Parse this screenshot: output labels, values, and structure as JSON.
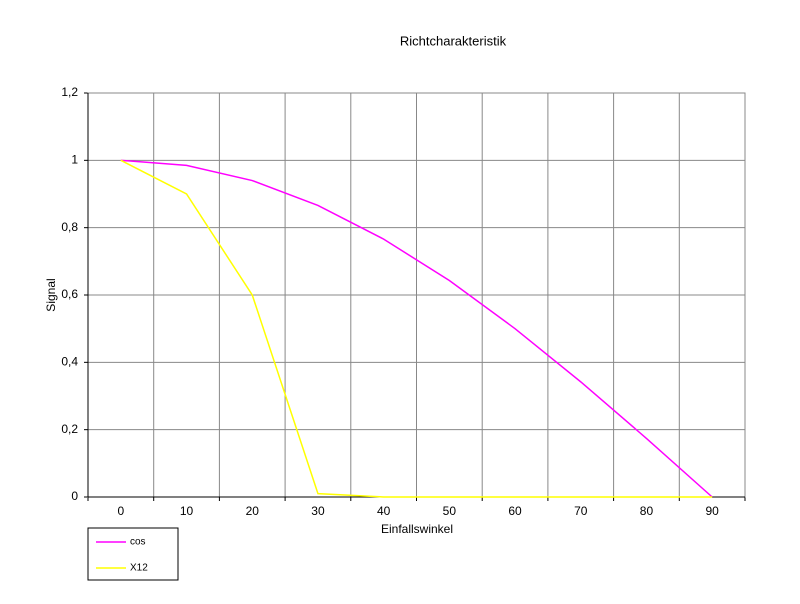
{
  "chart_data": {
    "type": "line",
    "title": "Richtcharakteristik",
    "x_label": "Einfallswinkel",
    "y_label": "Signal",
    "categories": [
      0,
      10,
      20,
      30,
      40,
      50,
      60,
      70,
      80,
      90
    ],
    "series": [
      {
        "name": "cos",
        "color": "#ff00ff",
        "values": [
          1,
          0.985,
          0.94,
          0.866,
          0.766,
          0.643,
          0.5,
          0.342,
          0.174,
          0
        ]
      },
      {
        "name": "X12",
        "color": "#ffff00",
        "values": [
          1,
          0.9,
          0.6,
          0.01,
          0,
          0,
          0,
          0,
          0,
          0
        ]
      }
    ],
    "ylim": [
      0,
      1.2
    ],
    "yticks": [
      0,
      {
        "value": 0.2,
        "label": "0,2"
      },
      {
        "value": 0.4,
        "label": "0,4"
      },
      {
        "value": 0.6,
        "label": "0,6"
      },
      {
        "value": 0.8,
        "label": "0,8"
      },
      1,
      {
        "value": 1.2,
        "label": "1,2"
      }
    ],
    "grid": true,
    "legend": "bottom-left"
  }
}
